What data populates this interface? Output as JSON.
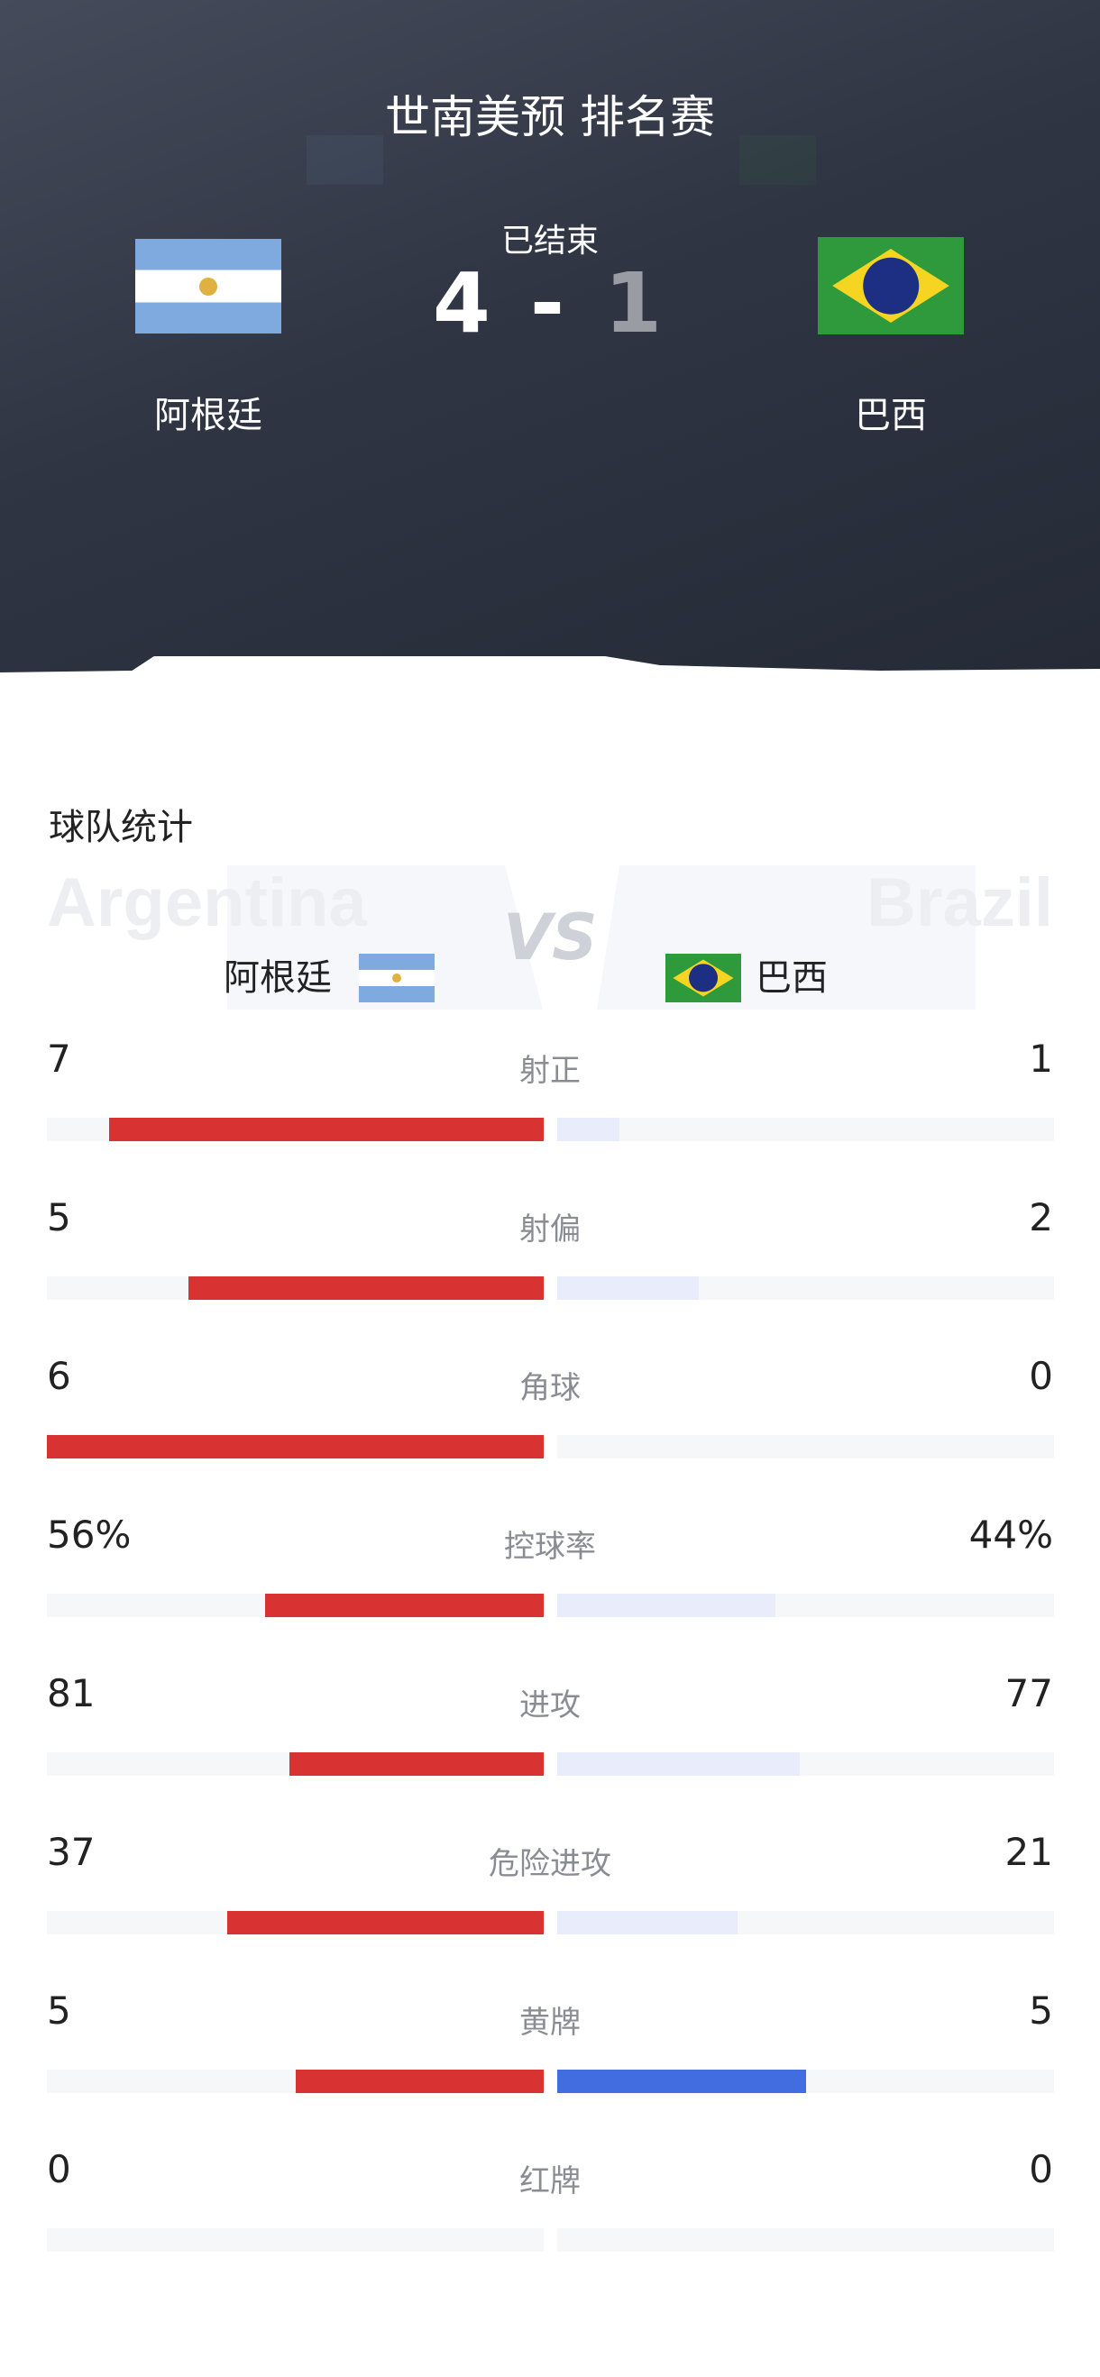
{
  "match": {
    "title": "世南美预 排名赛",
    "status": "已结束",
    "home_score": "4",
    "away_score": "1",
    "separator": "-",
    "home": {
      "name": "阿根廷",
      "en": "Argentina",
      "flag": "argentina-flag-icon"
    },
    "away": {
      "name": "巴西",
      "en": "Brazil",
      "flag": "brazil-flag-icon"
    }
  },
  "stats_section": {
    "title": "球队统计",
    "vs": "VS"
  },
  "colors": {
    "home_bar": "#d93232",
    "away_bar": "#e9edfb",
    "away_bar_highlight": "#416de0",
    "track": "#f6f7f9"
  },
  "stats": [
    {
      "label": "射正",
      "home": "7",
      "away": "1",
      "home_value": 7,
      "away_value": 1,
      "highlight": false
    },
    {
      "label": "射偏",
      "home": "5",
      "away": "2",
      "home_value": 5,
      "away_value": 2,
      "highlight": false
    },
    {
      "label": "角球",
      "home": "6",
      "away": "0",
      "home_value": 6,
      "away_value": 0,
      "highlight": false
    },
    {
      "label": "控球率",
      "home": "56%",
      "away": "44%",
      "home_value": 56,
      "away_value": 44,
      "highlight": false
    },
    {
      "label": "进攻",
      "home": "81",
      "away": "77",
      "home_value": 81,
      "away_value": 77,
      "highlight": false
    },
    {
      "label": "危险进攻",
      "home": "37",
      "away": "21",
      "home_value": 37,
      "away_value": 21,
      "highlight": false
    },
    {
      "label": "黄牌",
      "home": "5",
      "away": "5",
      "home_value": 5,
      "away_value": 5,
      "highlight": true
    },
    {
      "label": "红牌",
      "home": "0",
      "away": "0",
      "home_value": 0,
      "away_value": 0,
      "highlight": false
    }
  ]
}
